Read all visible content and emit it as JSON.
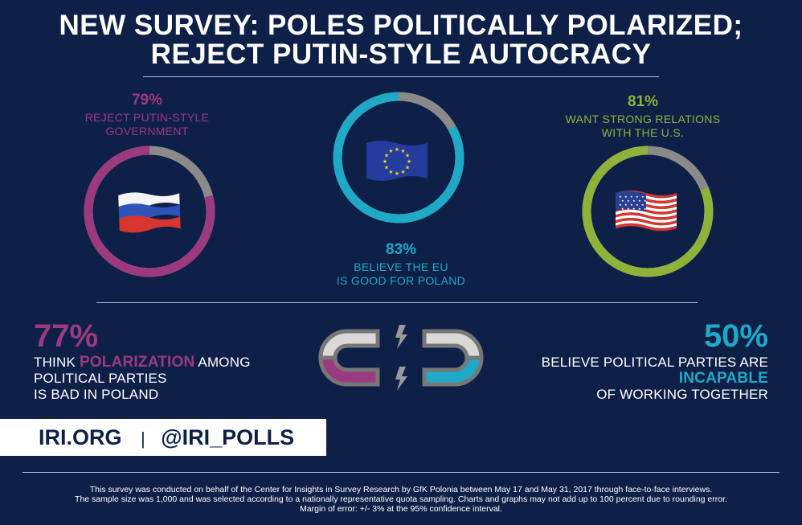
{
  "title": {
    "line1": "NEW SURVEY: POLES POLITICALLY POLARIZED;",
    "line2": "REJECT PUTIN-STYLE AUTOCRACY"
  },
  "colors": {
    "background": "#0f2048",
    "purple": "#9b3a7e",
    "teal": "#1fa9c7",
    "green": "#8fb23a",
    "gray": "#8a8a8a"
  },
  "stats": {
    "russia": {
      "percent": "79%",
      "value": 79,
      "label_line1": "REJECT PUTIN-STYLE",
      "label_line2": "GOVERNMENT",
      "icon": "russia-flag-icon"
    },
    "eu": {
      "percent": "83%",
      "value": 83,
      "label_line1": "BELIEVE THE EU",
      "label_line2": "IS GOOD FOR POLAND",
      "icon": "eu-flag-icon"
    },
    "us": {
      "percent": "81%",
      "value": 81,
      "label_line1": "WANT STRONG RELATIONS",
      "label_line2": "WITH THE U.S.",
      "icon": "us-flag-icon"
    }
  },
  "polarization": {
    "percent": "77%",
    "value": 77,
    "text_think": "THINK ",
    "text_highlight": "POLARIZATION",
    "text_among": " AMONG",
    "line2": "POLITICAL PARTIES",
    "line3": "IS BAD IN POLAND"
  },
  "parties": {
    "percent": "50%",
    "value": 50,
    "line1": "BELIEVE POLITICAL PARTIES ARE",
    "highlight": "INCAPABLE",
    "line3": "OF WORKING TOGETHER"
  },
  "handles": {
    "site": "IRI.ORG",
    "separator": "|",
    "twitter": "@IRI_POLLS"
  },
  "footer": {
    "line1": "This survey was conducted on behalf of the Center for Insights in Survey Research by GfK Polonia between May 17 and May 31, 2017 through face-to-face interviews.",
    "line2": "The sample size was 1,000 and was selected according to a nationally representative quota sampling. Charts and graphs may not add up to 100 percent due to rounding error.",
    "line3": "Margin of error: +/- 3% at the 95% confidence interval."
  }
}
